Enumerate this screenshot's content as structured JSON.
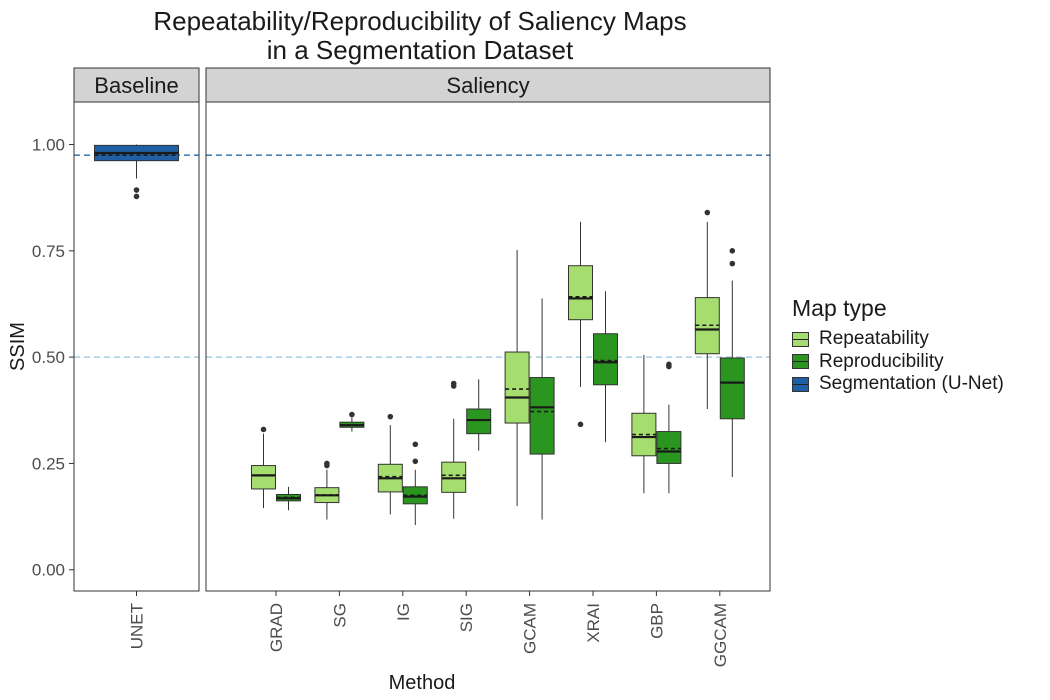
{
  "chart_data": {
    "type": "box",
    "title": "Repeatability/Reproducibility of Saliency Maps",
    "subtitle": "in a Segmentation Dataset",
    "xlabel": "Method",
    "ylabel": "SSIM",
    "ylim": [
      -0.05,
      1.1
    ],
    "yticks": [
      "0.00",
      "0.25",
      "0.50",
      "0.75",
      "1.00"
    ],
    "reference_lines": [
      {
        "y": 0.975,
        "color": "#4682b4"
      },
      {
        "y": 0.5,
        "color": "#a6cee3"
      }
    ],
    "legend": {
      "title": "Map type",
      "position": "right",
      "items": [
        {
          "label": "Repeatability",
          "color": "#a6dd6f"
        },
        {
          "label": "Reproducibility",
          "color": "#2a961f"
        },
        {
          "label": "Segmentation (U-Net)",
          "color": "#1f5fa5"
        }
      ]
    },
    "panels": [
      {
        "label": "Baseline",
        "categories": [
          "UNET"
        ],
        "boxes": [
          {
            "category": "UNET",
            "type": "Segmentation (U-Net)",
            "min": 0.92,
            "q1": 0.962,
            "median": 0.98,
            "q3": 0.998,
            "max": 1.0,
            "mean": 0.975,
            "outliers": [
              0.893,
              0.878
            ]
          }
        ]
      },
      {
        "label": "Saliency",
        "categories": [
          "GRAD",
          "SG",
          "IG",
          "SIG",
          "GCAM",
          "XRAI",
          "GBP",
          "GGCAM"
        ],
        "boxes": [
          {
            "category": "GRAD",
            "type": "Repeatability",
            "min": 0.145,
            "q1": 0.19,
            "median": 0.222,
            "q3": 0.245,
            "max": 0.32,
            "mean": 0.222,
            "outliers": [
              0.33
            ]
          },
          {
            "category": "GRAD",
            "type": "Reproducibility",
            "min": 0.14,
            "q1": 0.162,
            "median": 0.168,
            "q3": 0.177,
            "max": 0.195,
            "mean": 0.17,
            "outliers": []
          },
          {
            "category": "SG",
            "type": "Repeatability",
            "min": 0.118,
            "q1": 0.158,
            "median": 0.175,
            "q3": 0.193,
            "max": 0.235,
            "mean": 0.176,
            "outliers": [
              0.245,
              0.25
            ]
          },
          {
            "category": "SG",
            "type": "Reproducibility",
            "min": 0.325,
            "q1": 0.335,
            "median": 0.34,
            "q3": 0.347,
            "max": 0.358,
            "mean": 0.341,
            "outliers": [
              0.365
            ]
          },
          {
            "category": "IG",
            "type": "Repeatability",
            "min": 0.13,
            "q1": 0.183,
            "median": 0.215,
            "q3": 0.248,
            "max": 0.34,
            "mean": 0.219,
            "outliers": [
              0.36
            ]
          },
          {
            "category": "IG",
            "type": "Reproducibility",
            "min": 0.105,
            "q1": 0.155,
            "median": 0.172,
            "q3": 0.195,
            "max": 0.235,
            "mean": 0.175,
            "outliers": [
              0.255,
              0.295
            ]
          },
          {
            "category": "SIG",
            "type": "Repeatability",
            "min": 0.12,
            "q1": 0.182,
            "median": 0.215,
            "q3": 0.253,
            "max": 0.355,
            "mean": 0.222,
            "outliers": [
              0.432,
              0.438
            ]
          },
          {
            "category": "SIG",
            "type": "Reproducibility",
            "min": 0.28,
            "q1": 0.32,
            "median": 0.352,
            "q3": 0.378,
            "max": 0.448,
            "mean": 0.352,
            "outliers": []
          },
          {
            "category": "GCAM",
            "type": "Repeatability",
            "min": 0.15,
            "q1": 0.345,
            "median": 0.405,
            "q3": 0.512,
            "max": 0.752,
            "mean": 0.425,
            "outliers": []
          },
          {
            "category": "GCAM",
            "type": "Reproducibility",
            "min": 0.118,
            "q1": 0.272,
            "median": 0.382,
            "q3": 0.452,
            "max": 0.638,
            "mean": 0.372,
            "outliers": []
          },
          {
            "category": "XRAI",
            "type": "Repeatability",
            "min": 0.43,
            "q1": 0.588,
            "median": 0.638,
            "q3": 0.715,
            "max": 0.818,
            "mean": 0.642,
            "outliers": [
              0.342
            ]
          },
          {
            "category": "XRAI",
            "type": "Reproducibility",
            "min": 0.3,
            "q1": 0.435,
            "median": 0.488,
            "q3": 0.555,
            "max": 0.655,
            "mean": 0.492,
            "outliers": []
          },
          {
            "category": "GBP",
            "type": "Repeatability",
            "min": 0.18,
            "q1": 0.268,
            "median": 0.312,
            "q3": 0.368,
            "max": 0.505,
            "mean": 0.318,
            "outliers": []
          },
          {
            "category": "GBP",
            "type": "Reproducibility",
            "min": 0.18,
            "q1": 0.25,
            "median": 0.278,
            "q3": 0.325,
            "max": 0.388,
            "mean": 0.285,
            "outliers": [
              0.478,
              0.483
            ]
          },
          {
            "category": "GGCAM",
            "type": "Repeatability",
            "min": 0.378,
            "q1": 0.508,
            "median": 0.565,
            "q3": 0.64,
            "max": 0.818,
            "mean": 0.575,
            "outliers": [
              0.84
            ]
          },
          {
            "category": "GGCAM",
            "type": "Reproducibility",
            "min": 0.218,
            "q1": 0.355,
            "median": 0.44,
            "q3": 0.498,
            "max": 0.68,
            "mean": 0.44,
            "outliers": [
              0.72,
              0.75
            ]
          }
        ]
      }
    ]
  }
}
